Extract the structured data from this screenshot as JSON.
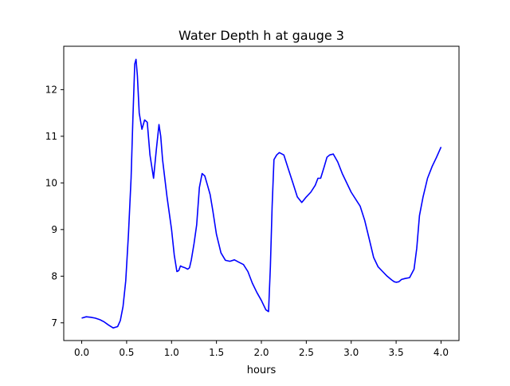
{
  "chart_data": {
    "type": "line",
    "title": "Water Depth h at gauge 3",
    "xlabel": "hours",
    "ylabel": "",
    "xlim": [
      -0.2,
      4.2
    ],
    "ylim": [
      6.62,
      12.93
    ],
    "xticks": [
      0.0,
      0.5,
      1.0,
      1.5,
      2.0,
      2.5,
      3.0,
      3.5,
      4.0
    ],
    "xtick_labels": [
      "0.0",
      "0.5",
      "1.0",
      "1.5",
      "2.0",
      "2.5",
      "3.0",
      "3.5",
      "4.0"
    ],
    "yticks": [
      7,
      8,
      9,
      10,
      11,
      12
    ],
    "ytick_labels": [
      "7",
      "8",
      "9",
      "10",
      "11",
      "12"
    ],
    "grid": false,
    "series": [
      {
        "color": "#0000ff",
        "x": [
          0.0,
          0.05,
          0.1,
          0.15,
          0.2,
          0.25,
          0.3,
          0.35,
          0.4,
          0.43,
          0.46,
          0.49,
          0.52,
          0.55,
          0.57,
          0.59,
          0.605,
          0.62,
          0.64,
          0.67,
          0.7,
          0.73,
          0.76,
          0.8,
          0.83,
          0.86,
          0.88,
          0.9,
          0.95,
          1.0,
          1.03,
          1.06,
          1.08,
          1.1,
          1.12,
          1.15,
          1.18,
          1.2,
          1.22,
          1.25,
          1.28,
          1.31,
          1.34,
          1.37,
          1.4,
          1.43,
          1.46,
          1.5,
          1.55,
          1.6,
          1.65,
          1.7,
          1.75,
          1.8,
          1.85,
          1.9,
          1.95,
          2.0,
          2.05,
          2.08,
          2.1,
          2.12,
          2.14,
          2.17,
          2.2,
          2.25,
          2.3,
          2.35,
          2.4,
          2.45,
          2.5,
          2.55,
          2.6,
          2.63,
          2.66,
          2.7,
          2.73,
          2.76,
          2.8,
          2.85,
          2.9,
          3.0,
          3.1,
          3.15,
          3.2,
          3.25,
          3.3,
          3.35,
          3.4,
          3.45,
          3.48,
          3.5,
          3.53,
          3.56,
          3.6,
          3.65,
          3.7,
          3.73,
          3.76,
          3.8,
          3.85,
          3.9,
          3.95,
          4.0
        ],
        "y": [
          7.1,
          7.13,
          7.12,
          7.1,
          7.07,
          7.02,
          6.95,
          6.89,
          6.92,
          7.05,
          7.35,
          7.9,
          8.9,
          10.1,
          11.4,
          12.55,
          12.65,
          12.3,
          11.5,
          11.15,
          11.35,
          11.3,
          10.6,
          10.1,
          10.7,
          11.25,
          11.0,
          10.5,
          9.7,
          9.0,
          8.45,
          8.1,
          8.12,
          8.22,
          8.2,
          8.18,
          8.15,
          8.18,
          8.35,
          8.7,
          9.1,
          9.9,
          10.2,
          10.15,
          9.95,
          9.75,
          9.4,
          8.9,
          8.5,
          8.34,
          8.32,
          8.35,
          8.3,
          8.25,
          8.1,
          7.85,
          7.65,
          7.48,
          7.28,
          7.24,
          8.2,
          9.5,
          10.5,
          10.6,
          10.65,
          10.6,
          10.3,
          10.0,
          9.7,
          9.58,
          9.7,
          9.8,
          9.95,
          10.1,
          10.1,
          10.35,
          10.55,
          10.6,
          10.62,
          10.45,
          10.2,
          9.8,
          9.5,
          9.2,
          8.8,
          8.4,
          8.2,
          8.1,
          8.0,
          7.92,
          7.88,
          7.87,
          7.88,
          7.93,
          7.95,
          7.97,
          8.15,
          8.6,
          9.3,
          9.7,
          10.1,
          10.35,
          10.55,
          10.77
        ]
      }
    ]
  }
}
